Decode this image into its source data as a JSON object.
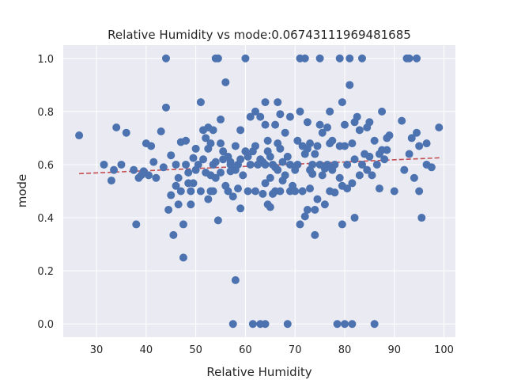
{
  "chart_data": {
    "type": "scatter",
    "title": "Relative Humidity vs mode:0.06743111969481685",
    "xlabel": "Relative Humidity",
    "ylabel": "mode",
    "xlim": [
      23.3,
      102.3
    ],
    "ylim": [
      -0.05,
      1.05
    ],
    "x_ticks": [
      30,
      40,
      50,
      60,
      70,
      80,
      90,
      100
    ],
    "y_ticks": [
      0.0,
      0.2,
      0.4,
      0.6,
      0.8,
      1.0
    ],
    "x_tick_labels": [
      "30",
      "40",
      "50",
      "60",
      "70",
      "80",
      "90",
      "100"
    ],
    "y_tick_labels": [
      "0.0",
      "0.2",
      "0.4",
      "0.6",
      "0.8",
      "1.0"
    ],
    "grid": true,
    "background": "#eaeaf2",
    "point_color": "#4c72b0",
    "trend_color": "#c44e52",
    "trend_line": {
      "x": [
        26.5,
        99.5
      ],
      "y": [
        0.566,
        0.626
      ]
    },
    "points": [
      [
        26.5,
        0.71
      ],
      [
        31.5,
        0.6
      ],
      [
        33.0,
        0.54
      ],
      [
        33.5,
        0.58
      ],
      [
        34.0,
        0.74
      ],
      [
        35.0,
        0.6
      ],
      [
        36.0,
        0.72
      ],
      [
        37.5,
        0.58
      ],
      [
        38.0,
        0.375
      ],
      [
        38.5,
        0.55
      ],
      [
        39.0,
        0.56
      ],
      [
        39.5,
        0.575
      ],
      [
        40.0,
        0.68
      ],
      [
        40.5,
        0.56
      ],
      [
        41.0,
        0.67
      ],
      [
        41.5,
        0.61
      ],
      [
        42.0,
        0.55
      ],
      [
        43.0,
        0.725
      ],
      [
        43.5,
        0.59
      ],
      [
        44.0,
        0.815
      ],
      [
        44.0,
        1.0
      ],
      [
        44.5,
        0.43
      ],
      [
        45.0,
        0.635
      ],
      [
        45.0,
        0.485
      ],
      [
        45.5,
        0.335
      ],
      [
        46.0,
        0.6
      ],
      [
        46.0,
        0.52
      ],
      [
        46.5,
        0.55
      ],
      [
        46.5,
        0.45
      ],
      [
        47.0,
        0.685
      ],
      [
        47.0,
        0.5
      ],
      [
        47.5,
        0.375
      ],
      [
        47.5,
        0.25
      ],
      [
        48.0,
        0.69
      ],
      [
        48.0,
        0.6
      ],
      [
        48.5,
        0.53
      ],
      [
        48.5,
        0.57
      ],
      [
        49.0,
        0.5
      ],
      [
        49.0,
        0.45
      ],
      [
        49.5,
        0.625
      ],
      [
        49.5,
        0.53
      ],
      [
        50.0,
        0.66
      ],
      [
        50.0,
        0.58
      ],
      [
        50.5,
        0.6
      ],
      [
        51.0,
        0.835
      ],
      [
        51.0,
        0.5
      ],
      [
        51.5,
        0.73
      ],
      [
        51.5,
        0.62
      ],
      [
        52.0,
        0.7
      ],
      [
        52.0,
        0.57
      ],
      [
        52.5,
        0.74
      ],
      [
        52.5,
        0.66
      ],
      [
        52.5,
        0.47
      ],
      [
        53.0,
        0.68
      ],
      [
        53.0,
        0.56
      ],
      [
        53.0,
        0.5
      ],
      [
        53.5,
        0.73
      ],
      [
        53.5,
        0.6
      ],
      [
        53.5,
        0.5
      ],
      [
        54.0,
        1.0
      ],
      [
        54.0,
        0.61
      ],
      [
        54.0,
        0.55
      ],
      [
        54.5,
        1.0
      ],
      [
        54.5,
        0.39
      ],
      [
        55.0,
        0.77
      ],
      [
        55.0,
        0.68
      ],
      [
        55.0,
        0.57
      ],
      [
        55.5,
        0.65
      ],
      [
        55.5,
        0.62
      ],
      [
        56.0,
        0.91
      ],
      [
        56.0,
        0.52
      ],
      [
        56.5,
        0.63
      ],
      [
        56.5,
        0.5
      ],
      [
        57.0,
        0.61
      ],
      [
        57.0,
        0.6
      ],
      [
        57.0,
        0.575
      ],
      [
        57.5,
        0.48
      ],
      [
        57.5,
        0.0
      ],
      [
        58.0,
        0.67
      ],
      [
        58.0,
        0.58
      ],
      [
        58.0,
        0.165
      ],
      [
        58.5,
        0.6
      ],
      [
        58.5,
        0.51
      ],
      [
        59.0,
        0.73
      ],
      [
        59.0,
        0.62
      ],
      [
        59.0,
        0.435
      ],
      [
        59.5,
        0.56
      ],
      [
        60.0,
        1.0
      ],
      [
        60.0,
        0.65
      ],
      [
        60.5,
        0.63
      ],
      [
        60.5,
        0.5
      ],
      [
        61.0,
        0.78
      ],
      [
        61.0,
        0.6
      ],
      [
        61.5,
        0.65
      ],
      [
        61.5,
        0.0
      ],
      [
        62.0,
        0.8
      ],
      [
        62.0,
        0.67
      ],
      [
        62.0,
        0.5
      ],
      [
        62.5,
        0.6
      ],
      [
        63.0,
        0.78
      ],
      [
        63.0,
        0.62
      ],
      [
        63.0,
        0.0
      ],
      [
        63.5,
        0.61
      ],
      [
        63.5,
        0.49
      ],
      [
        64.0,
        0.835
      ],
      [
        64.0,
        0.75
      ],
      [
        64.0,
        0.6
      ],
      [
        64.0,
        0.53
      ],
      [
        64.0,
        0.0
      ],
      [
        64.5,
        0.69
      ],
      [
        64.5,
        0.65
      ],
      [
        64.5,
        0.45
      ],
      [
        65.0,
        0.63
      ],
      [
        65.0,
        0.55
      ],
      [
        65.0,
        0.44
      ],
      [
        65.5,
        0.6
      ],
      [
        65.5,
        0.49
      ],
      [
        66.0,
        0.75
      ],
      [
        66.0,
        0.59
      ],
      [
        66.0,
        0.5
      ],
      [
        66.5,
        0.835
      ],
      [
        66.5,
        0.68
      ],
      [
        66.5,
        0.58
      ],
      [
        67.0,
        0.79
      ],
      [
        67.0,
        0.66
      ],
      [
        67.0,
        0.5
      ],
      [
        67.5,
        0.61
      ],
      [
        67.5,
        0.54
      ],
      [
        68.0,
        0.72
      ],
      [
        68.0,
        0.56
      ],
      [
        68.5,
        0.63
      ],
      [
        68.5,
        0.0
      ],
      [
        69.0,
        0.78
      ],
      [
        69.0,
        0.6
      ],
      [
        69.0,
        0.5
      ],
      [
        69.5,
        0.52
      ],
      [
        70.0,
        0.58
      ],
      [
        70.0,
        0.5
      ],
      [
        70.5,
        0.69
      ],
      [
        70.5,
        0.6
      ],
      [
        71.0,
        1.0
      ],
      [
        71.0,
        0.8
      ],
      [
        71.0,
        0.375
      ],
      [
        71.5,
        0.67
      ],
      [
        71.5,
        0.5
      ],
      [
        72.0,
        1.0
      ],
      [
        72.0,
        0.64
      ],
      [
        72.0,
        0.405
      ],
      [
        72.5,
        0.76
      ],
      [
        72.5,
        0.66
      ],
      [
        72.5,
        0.43
      ],
      [
        73.0,
        0.68
      ],
      [
        73.0,
        0.58
      ],
      [
        73.0,
        0.51
      ],
      [
        73.5,
        0.6
      ],
      [
        73.5,
        0.565
      ],
      [
        74.0,
        0.64
      ],
      [
        74.0,
        0.43
      ],
      [
        74.0,
        0.335
      ],
      [
        74.5,
        0.67
      ],
      [
        74.5,
        0.47
      ],
      [
        75.0,
        1.0
      ],
      [
        75.0,
        0.75
      ],
      [
        75.0,
        0.6
      ],
      [
        75.5,
        0.72
      ],
      [
        75.5,
        0.56
      ],
      [
        76.0,
        0.45
      ],
      [
        76.0,
        0.585
      ],
      [
        76.5,
        0.74
      ],
      [
        76.5,
        0.6
      ],
      [
        77.0,
        0.8
      ],
      [
        77.0,
        0.68
      ],
      [
        77.0,
        0.5
      ],
      [
        77.5,
        0.69
      ],
      [
        77.5,
        0.58
      ],
      [
        78.0,
        0.6
      ],
      [
        78.0,
        0.495
      ],
      [
        78.5,
        0.0
      ],
      [
        79.0,
        1.0
      ],
      [
        79.0,
        0.67
      ],
      [
        79.0,
        0.55
      ],
      [
        79.5,
        0.835
      ],
      [
        79.5,
        0.52
      ],
      [
        79.5,
        0.375
      ],
      [
        80.0,
        0.75
      ],
      [
        80.0,
        0.67
      ],
      [
        80.0,
        0.0
      ],
      [
        80.5,
        0.6
      ],
      [
        80.5,
        0.51
      ],
      [
        81.0,
        0.9
      ],
      [
        81.0,
        1.0
      ],
      [
        81.5,
        0.68
      ],
      [
        81.5,
        0.53
      ],
      [
        81.5,
        0.0
      ],
      [
        82.0,
        0.76
      ],
      [
        82.0,
        0.62
      ],
      [
        82.0,
        0.4
      ],
      [
        82.5,
        0.78
      ],
      [
        83.0,
        0.73
      ],
      [
        83.0,
        0.56
      ],
      [
        83.5,
        1.0
      ],
      [
        83.5,
        0.6
      ],
      [
        84.0,
        0.64
      ],
      [
        84.5,
        0.74
      ],
      [
        84.5,
        0.58
      ],
      [
        85.0,
        0.76
      ],
      [
        85.0,
        0.63
      ],
      [
        85.5,
        0.56
      ],
      [
        86.0,
        0.69
      ],
      [
        86.0,
        0.0
      ],
      [
        86.5,
        0.6
      ],
      [
        87.0,
        0.64
      ],
      [
        87.0,
        0.51
      ],
      [
        87.5,
        0.8
      ],
      [
        87.5,
        0.655
      ],
      [
        88.0,
        0.62
      ],
      [
        88.5,
        0.7
      ],
      [
        88.5,
        0.655
      ],
      [
        89.0,
        0.71
      ],
      [
        90.0,
        0.5
      ],
      [
        91.5,
        0.765
      ],
      [
        92.0,
        0.58
      ],
      [
        92.5,
        1.0
      ],
      [
        93.0,
        1.0
      ],
      [
        93.0,
        0.64
      ],
      [
        93.5,
        0.7
      ],
      [
        94.0,
        0.55
      ],
      [
        94.5,
        1.0
      ],
      [
        94.5,
        0.72
      ],
      [
        95.0,
        0.5
      ],
      [
        95.0,
        0.67
      ],
      [
        95.5,
        0.4
      ],
      [
        96.5,
        0.68
      ],
      [
        96.5,
        0.6
      ],
      [
        97.5,
        0.59
      ],
      [
        99.0,
        0.74
      ]
    ]
  }
}
